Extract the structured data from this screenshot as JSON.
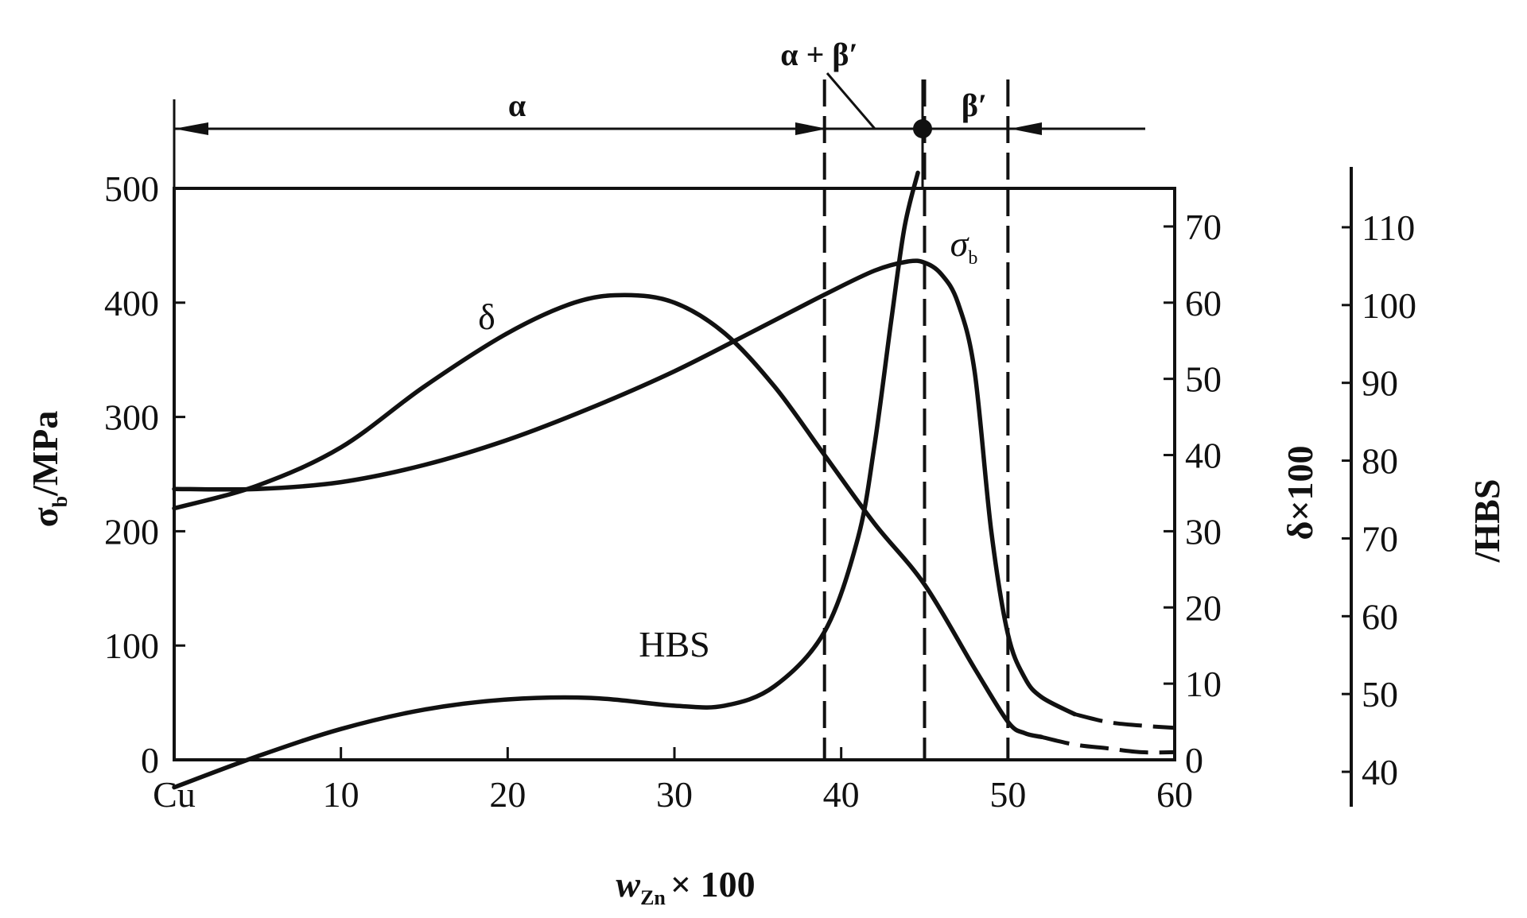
{
  "chart_data": {
    "type": "line",
    "title": "",
    "xlabel": "w Zn × 100",
    "xlabel_main": "w",
    "xlabel_sub": "Zn",
    "xlabel_tail": "× 100",
    "xlim": [
      0,
      60
    ],
    "x_ticks": [
      {
        "value": 0,
        "label": "Cu"
      },
      {
        "value": 10,
        "label": "10"
      },
      {
        "value": 20,
        "label": "20"
      },
      {
        "value": 30,
        "label": "30"
      },
      {
        "value": 40,
        "label": "40"
      },
      {
        "value": 50,
        "label": "50"
      },
      {
        "value": 60,
        "label": "60"
      }
    ],
    "axes": {
      "left": {
        "label": "σ_b/MPa",
        "label_main": "σ",
        "label_sub": "b",
        "label_tail": "/MPa",
        "range": [
          0,
          500
        ],
        "ticks": [
          0,
          100,
          200,
          300,
          400,
          500
        ]
      },
      "right1": {
        "label": "δ×100",
        "label_main": "δ×100",
        "range": [
          0,
          75
        ],
        "ticks": [
          0,
          10,
          20,
          30,
          40,
          50,
          60,
          70
        ]
      },
      "right2": {
        "label": "/HBS",
        "label_main": "/HBS",
        "range": [
          35,
          115
        ],
        "ticks": [
          40,
          50,
          60,
          70,
          80,
          90,
          100,
          110
        ]
      }
    },
    "series": [
      {
        "name": "σb",
        "label_main": "σ",
        "label_sub": "b",
        "axis": "left",
        "x": [
          0,
          5,
          10,
          15,
          20,
          25,
          30,
          35,
          39,
          42,
          44,
          45,
          46,
          47,
          48,
          49,
          50,
          51,
          52,
          54
        ],
        "y": [
          237,
          237,
          243,
          258,
          280,
          308,
          340,
          377,
          407,
          428,
          436,
          435,
          425,
          400,
          340,
          200,
          110,
          72,
          55,
          40
        ],
        "extension": {
          "x": [
            54,
            56,
            58,
            60
          ],
          "y": [
            40,
            33,
            30,
            28
          ]
        }
      },
      {
        "name": "δ",
        "label_main": "δ",
        "axis": "right1",
        "x": [
          0,
          5,
          10,
          15,
          20,
          24,
          27,
          30,
          33,
          36,
          39,
          42,
          45,
          48,
          50,
          51,
          52
        ],
        "y": [
          33,
          36,
          41,
          49,
          56,
          60,
          61,
          60,
          56,
          49,
          40,
          31,
          23,
          12,
          5,
          3.5,
          3
        ],
        "extension": {
          "x": [
            52,
            54,
            56,
            58,
            60
          ],
          "y": [
            3,
            2,
            1.5,
            1,
            1
          ]
        }
      },
      {
        "name": "HBS",
        "label_main": "HBS",
        "axis": "right2",
        "x": [
          0,
          5,
          10,
          15,
          20,
          25,
          30,
          33,
          36,
          39,
          41,
          42,
          43,
          43.8,
          44.6
        ],
        "y": [
          38,
          42,
          45.5,
          48,
          49.3,
          49.5,
          48.5,
          48.5,
          51,
          58,
          70,
          82,
          98,
          110,
          117
        ]
      }
    ],
    "phase_regions": [
      {
        "label": "α",
        "from": 0,
        "to": 39
      },
      {
        "label": "α + β′",
        "from": 39,
        "to": 45
      },
      {
        "label": "β′",
        "from": 45,
        "to": 50
      }
    ],
    "boundaries": [
      39,
      45,
      50
    ],
    "grid": false,
    "legend": "none"
  }
}
